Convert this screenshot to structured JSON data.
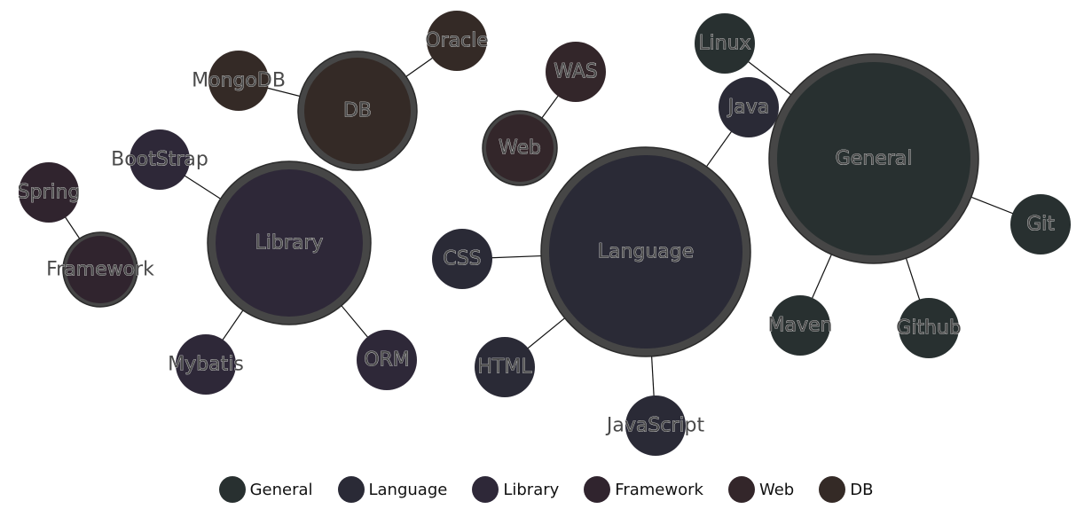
{
  "legend": [
    {
      "key": "General",
      "label": "General",
      "color": "#283030"
    },
    {
      "key": "Language",
      "label": "Language",
      "color": "#2a2a36"
    },
    {
      "key": "Library",
      "label": "Library",
      "color": "#2e2838"
    },
    {
      "key": "Framework",
      "label": "Framework",
      "color": "#30242e"
    },
    {
      "key": "Web",
      "label": "Web",
      "color": "#33262a"
    },
    {
      "key": "DB",
      "label": "DB",
      "color": "#342a26"
    }
  ],
  "ring_color": "#464646",
  "nodes": [
    {
      "id": "General",
      "label": "General",
      "group": "General",
      "hub": true
    },
    {
      "id": "Linux",
      "label": "Linux",
      "group": "General"
    },
    {
      "id": "Git",
      "label": "Git",
      "group": "General"
    },
    {
      "id": "Maven",
      "label": "Maven",
      "group": "General"
    },
    {
      "id": "Github",
      "label": "Github",
      "group": "General"
    },
    {
      "id": "Language",
      "label": "Language",
      "group": "Language",
      "hub": true
    },
    {
      "id": "Java",
      "label": "Java",
      "group": "Language"
    },
    {
      "id": "CSS",
      "label": "CSS",
      "group": "Language"
    },
    {
      "id": "HTML",
      "label": "HTML",
      "group": "Language"
    },
    {
      "id": "JavaScript",
      "label": "JavaScript",
      "group": "Language"
    },
    {
      "id": "Library",
      "label": "Library",
      "group": "Library",
      "hub": true
    },
    {
      "id": "BootStrap",
      "label": "BootStrap",
      "group": "Library"
    },
    {
      "id": "Mybatis",
      "label": "Mybatis",
      "group": "Library"
    },
    {
      "id": "ORM",
      "label": "ORM",
      "group": "Library"
    },
    {
      "id": "Framework",
      "label": "Framework",
      "group": "Framework",
      "hub": true
    },
    {
      "id": "Spring",
      "label": "Spring",
      "group": "Framework"
    },
    {
      "id": "Web",
      "label": "Web",
      "group": "Web",
      "hub": true
    },
    {
      "id": "WAS",
      "label": "WAS",
      "group": "Web"
    },
    {
      "id": "DB",
      "label": "DB",
      "group": "DB",
      "hub": true
    },
    {
      "id": "MongoDB",
      "label": "MongoDB",
      "group": "DB"
    },
    {
      "id": "Oracle",
      "label": "Oracle",
      "group": "DB"
    }
  ],
  "links": [
    [
      "General",
      "Linux"
    ],
    [
      "General",
      "Git"
    ],
    [
      "General",
      "Maven"
    ],
    [
      "General",
      "Github"
    ],
    [
      "Language",
      "Java"
    ],
    [
      "Language",
      "CSS"
    ],
    [
      "Language",
      "HTML"
    ],
    [
      "Language",
      "JavaScript"
    ],
    [
      "Library",
      "BootStrap"
    ],
    [
      "Library",
      "Mybatis"
    ],
    [
      "Library",
      "ORM"
    ],
    [
      "Framework",
      "Spring"
    ],
    [
      "Web",
      "WAS"
    ],
    [
      "DB",
      "MongoDB"
    ],
    [
      "DB",
      "Oracle"
    ]
  ]
}
